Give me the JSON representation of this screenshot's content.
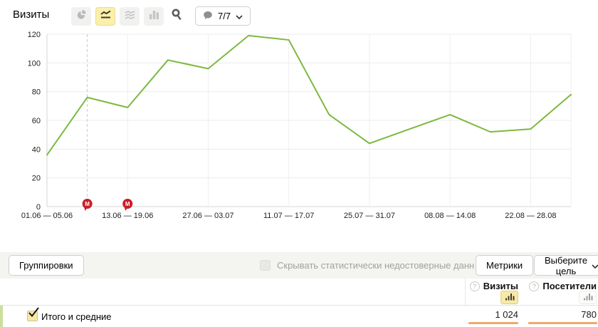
{
  "header": {
    "title": "Визиты",
    "chart_type_buttons": [
      {
        "icon": "pie-chart-icon",
        "selected": false
      },
      {
        "icon": "line-chart-icon",
        "selected": true
      },
      {
        "icon": "stacked-area-icon",
        "selected": false
      },
      {
        "icon": "bar-chart-icon",
        "selected": false
      }
    ],
    "map_pin_icon": "map-pin-icon",
    "comments_dropdown": {
      "icon": "comment-bubble-icon",
      "label": "7/7",
      "chevron": "chevron-down-icon"
    }
  },
  "chart_data": {
    "type": "line",
    "series": [
      {
        "name": "Визиты",
        "color": "#7cb93e",
        "values": [
          36,
          76,
          69,
          102,
          96,
          119,
          116,
          64,
          44,
          54,
          64,
          52,
          54,
          78
        ]
      }
    ],
    "x_tick_labels": [
      "01.06 — 05.06",
      "13.06 — 19.06",
      "27.06 — 03.07",
      "11.07 — 17.07",
      "25.07 — 31.07",
      "08.08 — 14.08",
      "22.08 — 28.08"
    ],
    "x_tick_indices": [
      0,
      2,
      4,
      6,
      8,
      10,
      12
    ],
    "y_ticks": [
      0,
      20,
      40,
      60,
      80,
      100,
      120
    ],
    "ylim": [
      0,
      120
    ],
    "xlabel": "",
    "ylabel": "",
    "grid": true,
    "legend": false,
    "dashed_guideline_index": 1
  },
  "annotations": {
    "badge_letter": "М",
    "indices": [
      1,
      2
    ],
    "color": "#cb1d27"
  },
  "footer": {
    "groupings_button": "Группировки",
    "hide_label": "Скрывать статистически недостоверные данн…",
    "metrics_button": "Метрики",
    "goal_button": "Выберите цель",
    "columns": [
      {
        "label": "Визиты",
        "help_icon": "question-circle-icon",
        "sort_icon": "mini-bar-chart-icon",
        "selected": true
      },
      {
        "label": "Посетители",
        "help_icon": "question-circle-icon",
        "sort_icon": "mini-bar-chart-icon",
        "selected": false
      }
    ],
    "totals_row": {
      "label": "Итого и средние",
      "checked": true,
      "values": [
        "1 024",
        "780"
      ]
    }
  },
  "colors": {
    "line_green": "#7cb93e",
    "selected_yellow_bg": "#fcefa9",
    "annotation_red": "#cb1d27",
    "value_bar_orange": "#f0a96a",
    "row_accent_green": "#cbdf9d",
    "toolbar_strip_bg": "#f4f4f1"
  }
}
